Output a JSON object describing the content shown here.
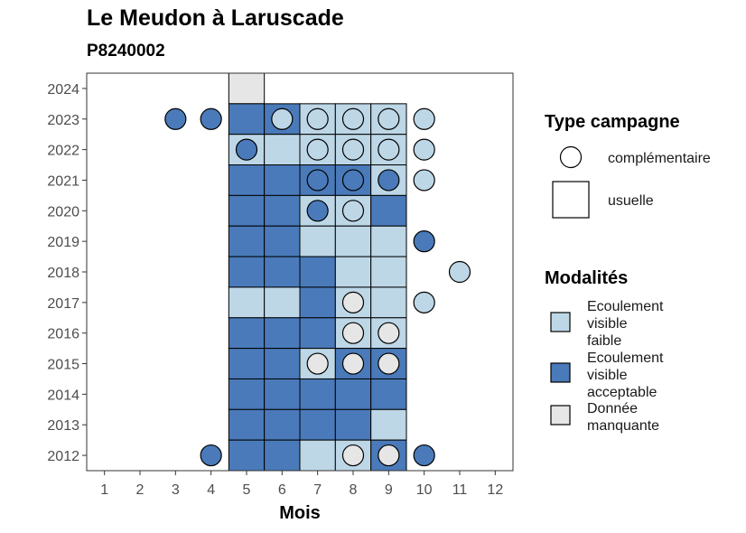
{
  "title": "Le Meudon à Laruscade",
  "subtitle": "P8240002",
  "chart_data": {
    "type": "heatmap",
    "xlabel": "Mois",
    "ylabel": "",
    "x_ticks": [
      1,
      2,
      3,
      4,
      5,
      6,
      7,
      8,
      9,
      10,
      11,
      12
    ],
    "y_ticks": [
      2012,
      2013,
      2014,
      2015,
      2016,
      2017,
      2018,
      2019,
      2020,
      2021,
      2022,
      2023,
      2024
    ],
    "xlim": [
      0.5,
      12.5
    ],
    "ylim": [
      2011.5,
      2024.5
    ],
    "grid": false,
    "colors": {
      "Ecoulement visible faible": "#bdd7e7",
      "Ecoulement visible acceptable": "#4a7ab9",
      "Donnée manquante": "#e6e6e6"
    },
    "tiles": [
      {
        "year": 2024,
        "month": 5,
        "modalite": "Donnée manquante"
      },
      {
        "year": 2023,
        "month": 5,
        "modalite": "Ecoulement visible acceptable"
      },
      {
        "year": 2023,
        "month": 6,
        "modalite": "Ecoulement visible acceptable"
      },
      {
        "year": 2023,
        "month": 7,
        "modalite": "Ecoulement visible faible"
      },
      {
        "year": 2023,
        "month": 8,
        "modalite": "Ecoulement visible faible"
      },
      {
        "year": 2023,
        "month": 9,
        "modalite": "Ecoulement visible faible"
      },
      {
        "year": 2022,
        "month": 5,
        "modalite": "Ecoulement visible faible"
      },
      {
        "year": 2022,
        "month": 6,
        "modalite": "Ecoulement visible faible"
      },
      {
        "year": 2022,
        "month": 7,
        "modalite": "Ecoulement visible faible"
      },
      {
        "year": 2022,
        "month": 8,
        "modalite": "Ecoulement visible faible"
      },
      {
        "year": 2022,
        "month": 9,
        "modalite": "Ecoulement visible faible"
      },
      {
        "year": 2021,
        "month": 5,
        "modalite": "Ecoulement visible acceptable"
      },
      {
        "year": 2021,
        "month": 6,
        "modalite": "Ecoulement visible acceptable"
      },
      {
        "year": 2021,
        "month": 7,
        "modalite": "Ecoulement visible acceptable"
      },
      {
        "year": 2021,
        "month": 8,
        "modalite": "Ecoulement visible acceptable"
      },
      {
        "year": 2021,
        "month": 9,
        "modalite": "Ecoulement visible faible"
      },
      {
        "year": 2020,
        "month": 5,
        "modalite": "Ecoulement visible acceptable"
      },
      {
        "year": 2020,
        "month": 6,
        "modalite": "Ecoulement visible acceptable"
      },
      {
        "year": 2020,
        "month": 7,
        "modalite": "Ecoulement visible faible"
      },
      {
        "year": 2020,
        "month": 8,
        "modalite": "Ecoulement visible faible"
      },
      {
        "year": 2020,
        "month": 9,
        "modalite": "Ecoulement visible acceptable"
      },
      {
        "year": 2019,
        "month": 5,
        "modalite": "Ecoulement visible acceptable"
      },
      {
        "year": 2019,
        "month": 6,
        "modalite": "Ecoulement visible acceptable"
      },
      {
        "year": 2019,
        "month": 7,
        "modalite": "Ecoulement visible faible"
      },
      {
        "year": 2019,
        "month": 8,
        "modalite": "Ecoulement visible faible"
      },
      {
        "year": 2019,
        "month": 9,
        "modalite": "Ecoulement visible faible"
      },
      {
        "year": 2018,
        "month": 5,
        "modalite": "Ecoulement visible acceptable"
      },
      {
        "year": 2018,
        "month": 6,
        "modalite": "Ecoulement visible acceptable"
      },
      {
        "year": 2018,
        "month": 7,
        "modalite": "Ecoulement visible acceptable"
      },
      {
        "year": 2018,
        "month": 8,
        "modalite": "Ecoulement visible faible"
      },
      {
        "year": 2018,
        "month": 9,
        "modalite": "Ecoulement visible faible"
      },
      {
        "year": 2017,
        "month": 5,
        "modalite": "Ecoulement visible faible"
      },
      {
        "year": 2017,
        "month": 6,
        "modalite": "Ecoulement visible faible"
      },
      {
        "year": 2017,
        "month": 7,
        "modalite": "Ecoulement visible acceptable"
      },
      {
        "year": 2017,
        "month": 8,
        "modalite": "Ecoulement visible faible"
      },
      {
        "year": 2017,
        "month": 9,
        "modalite": "Ecoulement visible faible"
      },
      {
        "year": 2016,
        "month": 5,
        "modalite": "Ecoulement visible acceptable"
      },
      {
        "year": 2016,
        "month": 6,
        "modalite": "Ecoulement visible acceptable"
      },
      {
        "year": 2016,
        "month": 7,
        "modalite": "Ecoulement visible acceptable"
      },
      {
        "year": 2016,
        "month": 8,
        "modalite": "Ecoulement visible faible"
      },
      {
        "year": 2016,
        "month": 9,
        "modalite": "Ecoulement visible faible"
      },
      {
        "year": 2015,
        "month": 5,
        "modalite": "Ecoulement visible acceptable"
      },
      {
        "year": 2015,
        "month": 6,
        "modalite": "Ecoulement visible acceptable"
      },
      {
        "year": 2015,
        "month": 7,
        "modalite": "Ecoulement visible faible"
      },
      {
        "year": 2015,
        "month": 8,
        "modalite": "Ecoulement visible acceptable"
      },
      {
        "year": 2015,
        "month": 9,
        "modalite": "Ecoulement visible acceptable"
      },
      {
        "year": 2014,
        "month": 5,
        "modalite": "Ecoulement visible acceptable"
      },
      {
        "year": 2014,
        "month": 6,
        "modalite": "Ecoulement visible acceptable"
      },
      {
        "year": 2014,
        "month": 7,
        "modalite": "Ecoulement visible acceptable"
      },
      {
        "year": 2014,
        "month": 8,
        "modalite": "Ecoulement visible acceptable"
      },
      {
        "year": 2014,
        "month": 9,
        "modalite": "Ecoulement visible acceptable"
      },
      {
        "year": 2013,
        "month": 5,
        "modalite": "Ecoulement visible acceptable"
      },
      {
        "year": 2013,
        "month": 6,
        "modalite": "Ecoulement visible acceptable"
      },
      {
        "year": 2013,
        "month": 7,
        "modalite": "Ecoulement visible acceptable"
      },
      {
        "year": 2013,
        "month": 8,
        "modalite": "Ecoulement visible acceptable"
      },
      {
        "year": 2013,
        "month": 9,
        "modalite": "Ecoulement visible faible"
      },
      {
        "year": 2012,
        "month": 5,
        "modalite": "Ecoulement visible acceptable"
      },
      {
        "year": 2012,
        "month": 6,
        "modalite": "Ecoulement visible acceptable"
      },
      {
        "year": 2012,
        "month": 7,
        "modalite": "Ecoulement visible faible"
      },
      {
        "year": 2012,
        "month": 8,
        "modalite": "Ecoulement visible faible"
      },
      {
        "year": 2012,
        "month": 9,
        "modalite": "Ecoulement visible acceptable"
      }
    ],
    "points": [
      {
        "year": 2023,
        "month": 3,
        "modalite": "Ecoulement visible acceptable"
      },
      {
        "year": 2023,
        "month": 4,
        "modalite": "Ecoulement visible acceptable"
      },
      {
        "year": 2023,
        "month": 6,
        "modalite": "Ecoulement visible faible"
      },
      {
        "year": 2023,
        "month": 7,
        "modalite": "Ecoulement visible faible"
      },
      {
        "year": 2023,
        "month": 8,
        "modalite": "Ecoulement visible faible"
      },
      {
        "year": 2023,
        "month": 9,
        "modalite": "Ecoulement visible faible"
      },
      {
        "year": 2023,
        "month": 10,
        "modalite": "Ecoulement visible faible"
      },
      {
        "year": 2022,
        "month": 5,
        "modalite": "Ecoulement visible acceptable"
      },
      {
        "year": 2022,
        "month": 7,
        "modalite": "Ecoulement visible faible"
      },
      {
        "year": 2022,
        "month": 8,
        "modalite": "Ecoulement visible faible"
      },
      {
        "year": 2022,
        "month": 9,
        "modalite": "Ecoulement visible faible"
      },
      {
        "year": 2022,
        "month": 10,
        "modalite": "Ecoulement visible faible"
      },
      {
        "year": 2021,
        "month": 7,
        "modalite": "Ecoulement visible acceptable"
      },
      {
        "year": 2021,
        "month": 8,
        "modalite": "Ecoulement visible acceptable"
      },
      {
        "year": 2021,
        "month": 9,
        "modalite": "Ecoulement visible acceptable"
      },
      {
        "year": 2021,
        "month": 10,
        "modalite": "Ecoulement visible faible"
      },
      {
        "year": 2020,
        "month": 7,
        "modalite": "Ecoulement visible acceptable"
      },
      {
        "year": 2020,
        "month": 8,
        "modalite": "Ecoulement visible faible"
      },
      {
        "year": 2019,
        "month": 10,
        "modalite": "Ecoulement visible acceptable"
      },
      {
        "year": 2018,
        "month": 11,
        "modalite": "Ecoulement visible faible"
      },
      {
        "year": 2017,
        "month": 8,
        "modalite": "Donnée manquante"
      },
      {
        "year": 2017,
        "month": 10,
        "modalite": "Ecoulement visible faible"
      },
      {
        "year": 2016,
        "month": 8,
        "modalite": "Donnée manquante"
      },
      {
        "year": 2016,
        "month": 9,
        "modalite": "Donnée manquante"
      },
      {
        "year": 2015,
        "month": 7,
        "modalite": "Donnée manquante"
      },
      {
        "year": 2015,
        "month": 8,
        "modalite": "Donnée manquante"
      },
      {
        "year": 2015,
        "month": 9,
        "modalite": "Donnée manquante"
      },
      {
        "year": 2012,
        "month": 4,
        "modalite": "Ecoulement visible acceptable"
      },
      {
        "year": 2012,
        "month": 8,
        "modalite": "Donnée manquante"
      },
      {
        "year": 2012,
        "month": 9,
        "modalite": "Donnée manquante"
      },
      {
        "year": 2012,
        "month": 10,
        "modalite": "Ecoulement visible acceptable"
      }
    ],
    "legend": {
      "placement": "right",
      "type_campagne": {
        "title": "Type campagne",
        "entries": [
          {
            "label": "complémentaire",
            "shape": "circle"
          },
          {
            "label": "usuelle",
            "shape": "square"
          }
        ]
      },
      "modalites": {
        "title": "Modalités",
        "entries": [
          {
            "lines": [
              "Ecoulement",
              "visible",
              "faible"
            ],
            "modalite": "Ecoulement visible faible"
          },
          {
            "lines": [
              "Ecoulement",
              "visible",
              "acceptable"
            ],
            "modalite": "Ecoulement visible acceptable"
          },
          {
            "lines": [
              "Donnée",
              "manquante"
            ],
            "modalite": "Donnée manquante"
          }
        ]
      }
    }
  }
}
